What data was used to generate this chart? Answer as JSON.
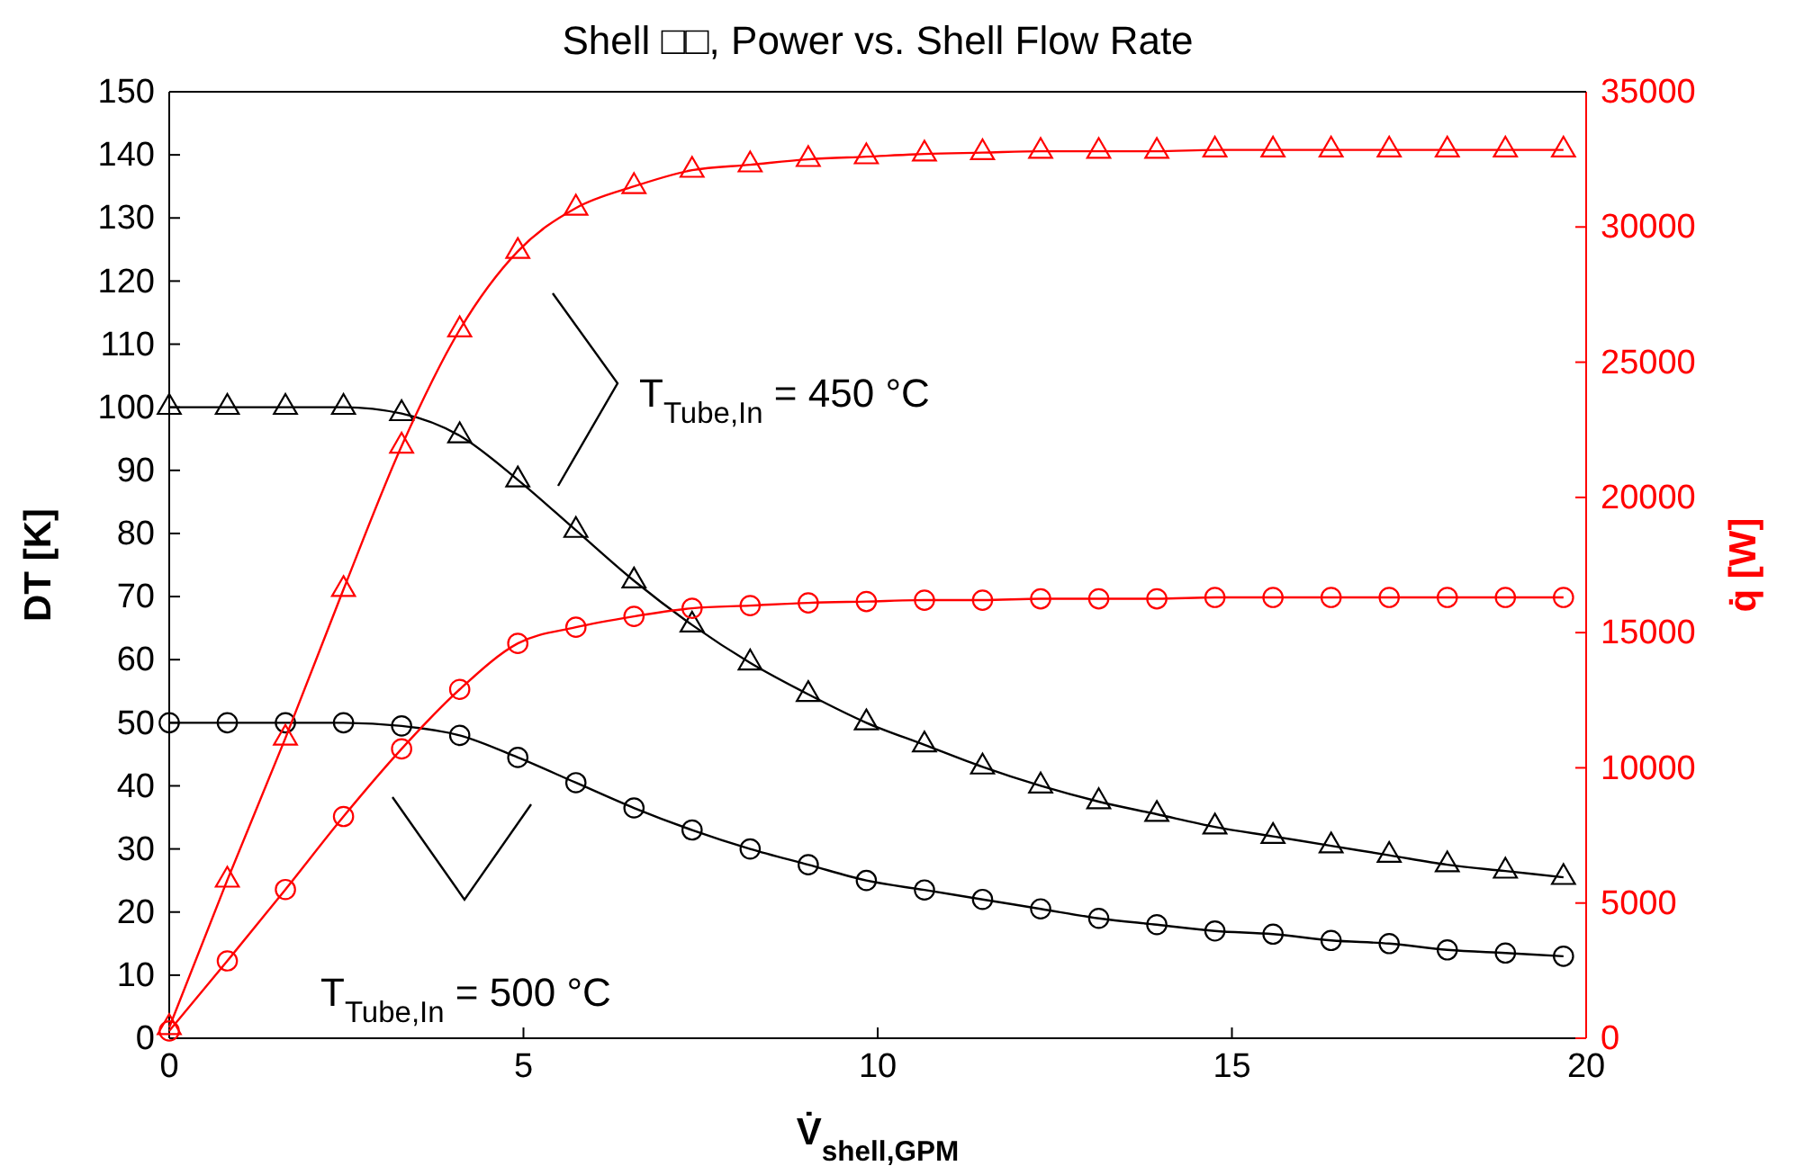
{
  "chart_data": {
    "type": "line",
    "title": "Shell □□, Power vs. Shell Flow Rate",
    "xlabel": "V̇$_{shell,GPM}$",
    "ylabel": "DT  [K]",
    "y2label": "q̇  [W]",
    "x": [
      0,
      0.82,
      1.64,
      2.46,
      3.28,
      4.1,
      4.92,
      5.74,
      6.56,
      7.38,
      8.2,
      9.02,
      9.84,
      10.66,
      11.48,
      12.3,
      13.12,
      13.94,
      14.76,
      15.58,
      16.4,
      17.22,
      18.04,
      18.86,
      19.68
    ],
    "series": [
      {
        "color": "#000000",
        "marker": "triangle",
        "values": [
          100,
          100,
          100,
          100,
          99,
          95.5,
          88.5,
          80.5,
          72.5,
          65.5,
          59.5,
          54.5,
          50,
          46.5,
          43,
          40,
          37.5,
          35.5,
          33.5,
          32,
          30.5,
          29,
          27.5,
          26.5,
          25.5
        ]
      },
      {
        "color": "#000000",
        "marker": "circle",
        "values": [
          50,
          50,
          50,
          50,
          49.5,
          48,
          44.5,
          40.5,
          36.5,
          33,
          30,
          27.5,
          25,
          23.5,
          22,
          20.5,
          19,
          18,
          17,
          16.5,
          15.5,
          15,
          14,
          13.5,
          13
        ]
      },
      {
        "color": "#ff0000",
        "marker": "triangle",
        "axis": "y2",
        "values": [
          400,
          5850,
          11100,
          16600,
          21900,
          26200,
          29100,
          30700,
          31500,
          32100,
          32300,
          32500,
          32600,
          32700,
          32750,
          32800,
          32800,
          32800,
          32850,
          32850,
          32850,
          32850,
          32850,
          32850,
          32850
        ]
      },
      {
        "color": "#ff0000",
        "marker": "circle",
        "axis": "y2",
        "values": [
          270,
          2860,
          5500,
          8200,
          10700,
          12900,
          14600,
          15200,
          15600,
          15900,
          16000,
          16100,
          16150,
          16200,
          16200,
          16250,
          16250,
          16250,
          16300,
          16300,
          16300,
          16300,
          16300,
          16300,
          16300
        ]
      }
    ],
    "annotations": [
      "T$_{Tube,In}$ = 450 °C",
      "T$_{Tube,In}$ = 500 °C"
    ],
    "xlim": [
      0,
      20
    ],
    "xticks": [
      0,
      5,
      10,
      15,
      20
    ],
    "ylim": [
      0,
      150
    ],
    "yticks": [
      0,
      10,
      20,
      30,
      40,
      50,
      60,
      70,
      80,
      90,
      100,
      110,
      120,
      130,
      140,
      150
    ],
    "y2lim": [
      0,
      35000
    ],
    "y2ticks": [
      0,
      5000,
      10000,
      15000,
      20000,
      25000,
      30000,
      35000
    ],
    "grid": false,
    "line_style": "solid"
  }
}
